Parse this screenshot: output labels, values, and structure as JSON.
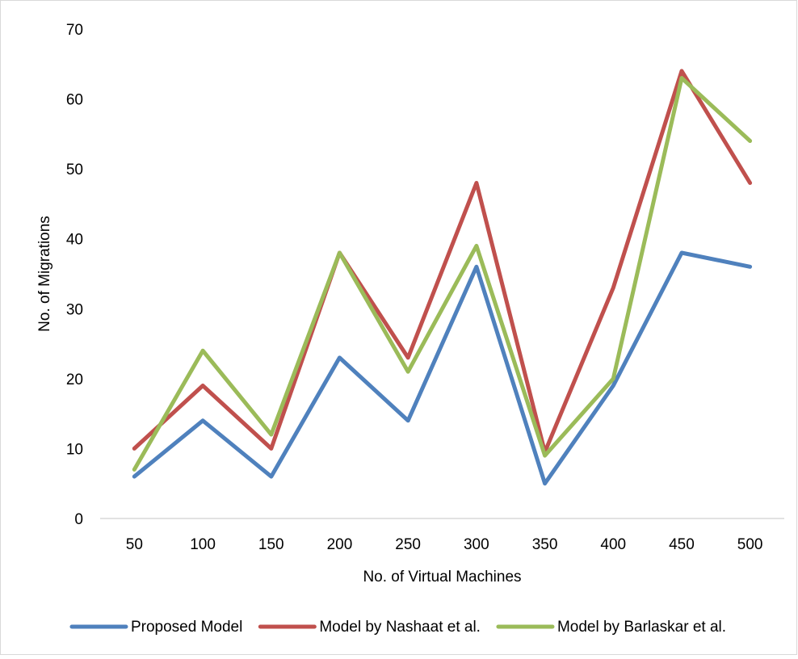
{
  "chart_data": {
    "type": "line",
    "title": "",
    "xlabel": "No. of Virtual Machines",
    "ylabel": "No. of Migrations",
    "categories": [
      "50",
      "100",
      "150",
      "200",
      "250",
      "300",
      "350",
      "400",
      "450",
      "500"
    ],
    "ylim": [
      0,
      70
    ],
    "yticks": [
      0,
      10,
      20,
      30,
      40,
      50,
      60,
      70
    ],
    "grid": false,
    "legend_position": "bottom",
    "series": [
      {
        "name": "Proposed Model",
        "color": "#4f81bd",
        "values": [
          6,
          14,
          6,
          23,
          14,
          36,
          5,
          19,
          38,
          36
        ]
      },
      {
        "name": "Model by Nashaat et al.",
        "color": "#c0504d",
        "values": [
          10,
          19,
          10,
          38,
          23,
          48,
          9.5,
          33,
          64,
          48
        ]
      },
      {
        "name": "Model by Barlaskar et al.",
        "color": "#9bbb59",
        "values": [
          7,
          24,
          12,
          38,
          21,
          39,
          9,
          20,
          63,
          54
        ]
      }
    ]
  }
}
